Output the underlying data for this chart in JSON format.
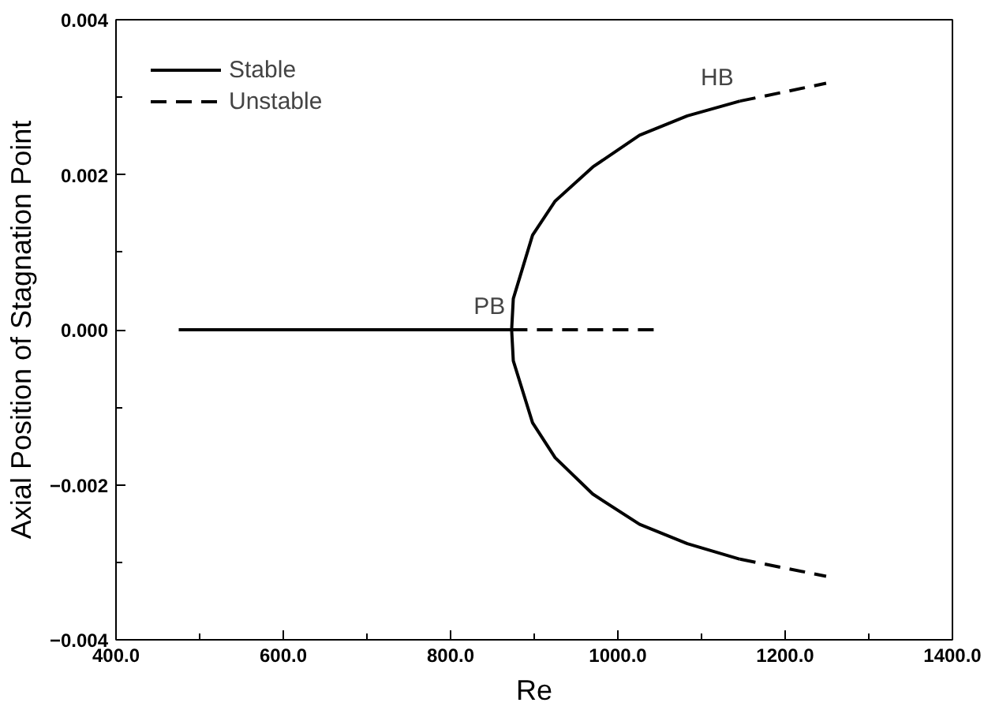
{
  "chart_data": {
    "type": "line",
    "xlabel": "Re",
    "ylabel": "Axial Position of Stagnation Point",
    "xlim": [
      400,
      1400
    ],
    "ylim": [
      -0.004,
      0.004
    ],
    "xticks": [
      {
        "value": 400,
        "label": "400.0"
      },
      {
        "value": 600,
        "label": "600.0"
      },
      {
        "value": 800,
        "label": "800.0"
      },
      {
        "value": 1000,
        "label": "1000.0"
      },
      {
        "value": 1200,
        "label": "1200.0"
      },
      {
        "value": 1400,
        "label": "1400.0"
      }
    ],
    "yticks": [
      {
        "value": -0.004,
        "label": "−0.004"
      },
      {
        "value": -0.002,
        "label": "−0.002"
      },
      {
        "value": 0,
        "label": "0.000"
      },
      {
        "value": 0.002,
        "label": "0.002"
      },
      {
        "value": 0.004,
        "label": "0.004"
      }
    ],
    "grid": false,
    "legend": "top left",
    "marker": "none",
    "series": [
      {
        "name": "Stable",
        "color": "#000000",
        "line_style": "solid",
        "x": [
          475,
          873
        ],
        "values": [
          0,
          0
        ]
      },
      {
        "name": "Unstable",
        "color": "#000000",
        "line_style": "dashed",
        "x": [
          873,
          1043
        ],
        "values": [
          0,
          0
        ]
      },
      {
        "color": "#000000",
        "line_style": "solid",
        "x": [
          1146,
          1083,
          1026,
          970,
          925,
          898,
          875,
          873,
          875,
          898,
          925,
          970,
          1026,
          1083,
          1146
        ],
        "values": [
          0.00295,
          0.00276,
          0.00251,
          0.0021,
          0.00166,
          0.00122,
          0.0004,
          0,
          -0.0004,
          -0.0012,
          -0.00165,
          -0.00212,
          -0.00251,
          -0.00276,
          -0.00296
        ]
      },
      {
        "color": "#000000",
        "line_style": "dashed",
        "x": [
          1146,
          1249
        ],
        "values": [
          0.00295,
          0.00318
        ]
      },
      {
        "color": "#000000",
        "line_style": "dashed",
        "x": [
          1146,
          1249
        ],
        "values": [
          -0.00296,
          -0.00318
        ]
      }
    ],
    "annotations": [
      {
        "text": "PB",
        "x": 873,
        "y": 0
      },
      {
        "text": "HB",
        "x": 1146,
        "y": 0.00295
      }
    ]
  }
}
